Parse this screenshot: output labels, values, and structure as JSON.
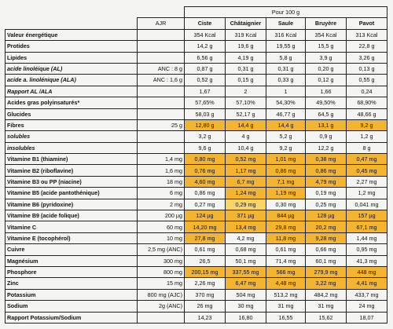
{
  "header": {
    "per_100g": "Pour 100 g",
    "ajr_label": "AJR",
    "columns": [
      "Ciste",
      "Châtaignier",
      "Saule",
      "Bruyère",
      "Pavot"
    ]
  },
  "colors": {
    "highlight": "#f3b431",
    "highlight_light": "#f7d46a",
    "background": "#f4f4f2"
  },
  "rows": [
    {
      "label": "Valeur énergétique",
      "italic": false,
      "ajr": "",
      "values": [
        "354 Kcal",
        "319 Kcal",
        "316 Kcal",
        "354 Kcal",
        "313 Kcal"
      ],
      "hl": [
        0,
        0,
        0,
        0,
        0
      ]
    },
    {
      "label": "Protides",
      "italic": false,
      "ajr": "",
      "values": [
        "14,2 g",
        "19,6 g",
        "19,55 g",
        "15,5 g",
        "22,8 g"
      ],
      "hl": [
        0,
        0,
        0,
        0,
        0
      ]
    },
    {
      "label": "Lipides",
      "italic": false,
      "ajr": "",
      "values": [
        "6,56 g",
        "4,19 g",
        "5,8 g",
        "3,9 g",
        "3,26 g"
      ],
      "hl": [
        0,
        0,
        0,
        0,
        0
      ]
    },
    {
      "label": "acide linoléique (AL)",
      "italic": true,
      "ajr": "ANC : 8 g",
      "values": [
        "0,87 g",
        "0,31 g",
        "0,31 g",
        "0,20 g",
        "0,13 g"
      ],
      "hl": [
        0,
        0,
        0,
        0,
        0
      ]
    },
    {
      "label": "acide a. linolénique (ALA)",
      "italic": true,
      "ajr": "ANC : 1,6 g",
      "values": [
        "0,52 g",
        "0,15 g",
        "0,33 g",
        "0,12 g",
        "0,55 g"
      ],
      "hl": [
        0,
        0,
        0,
        0,
        0
      ]
    },
    {
      "label": "Rapport AL /ALA",
      "italic": true,
      "ajr": "",
      "values": [
        "1,67",
        "2",
        "1",
        "1,66",
        "0,24"
      ],
      "hl": [
        0,
        0,
        0,
        0,
        0
      ]
    },
    {
      "label": "Acides gras polyinsaturés*",
      "italic": false,
      "ajr": "",
      "values": [
        "57,65%",
        "57,10%",
        "54,30%",
        "49,50%",
        "68,90%"
      ],
      "hl": [
        0,
        0,
        0,
        0,
        0
      ]
    },
    {
      "label": "Glucides",
      "italic": false,
      "ajr": "",
      "values": [
        "58,03 g",
        "52,17 g",
        "46,77 g",
        "64,5 g",
        "48,66 g"
      ],
      "hl": [
        0,
        0,
        0,
        0,
        0
      ]
    },
    {
      "label": "Fibres",
      "italic": false,
      "ajr": "25 g",
      "values": [
        "12,80 g",
        "14,4 g",
        "14,4 g",
        "13,1 g",
        "9,2 g"
      ],
      "hl": [
        1,
        1,
        1,
        1,
        1
      ]
    },
    {
      "label": "solubles",
      "italic": true,
      "ajr": "",
      "values": [
        "3,2 g",
        "4 g",
        "5,2 g",
        "0,9 g",
        "1,2 g"
      ],
      "hl": [
        0,
        0,
        0,
        0,
        0
      ]
    },
    {
      "label": "insolubles",
      "italic": true,
      "ajr": "",
      "values": [
        "9,6 g",
        "10,4 g",
        "9,2 g",
        "12,2 g",
        "8 g"
      ],
      "hl": [
        0,
        0,
        0,
        0,
        0
      ]
    },
    {
      "label": "Vitamine B1 (thiamine)",
      "italic": false,
      "ajr": "1,4 mg",
      "values": [
        "0,80 mg",
        "0,52 mg",
        "1,01 mg",
        "0,38 mg",
        "0,47 mg"
      ],
      "hl": [
        1,
        1,
        1,
        1,
        1
      ]
    },
    {
      "label": "Vitamine B2 (riboflavine)",
      "italic": false,
      "ajr": "1,6 mg",
      "values": [
        "0,76 mg",
        "1,17 mg",
        "0,86 mg",
        "0,86 mg",
        "0,45 mg"
      ],
      "hl": [
        1,
        1,
        1,
        1,
        1
      ]
    },
    {
      "label": "Vitamine B3 ou PP (niacine)",
      "italic": false,
      "ajr": "18 mg",
      "values": [
        "4,60 mg",
        "6,7 mg",
        "7,1 mg",
        "4,79 mg",
        "2,27 mg"
      ],
      "hl": [
        1,
        1,
        1,
        1,
        0
      ]
    },
    {
      "label": "Vitamine B5 (acide pantothénique)",
      "italic": false,
      "ajr": "6 mg",
      "values": [
        "0,86 mg",
        "1,24 mg",
        "1,19 mg",
        "0,19 mg",
        "1,2 mg"
      ],
      "hl": [
        0,
        1,
        1,
        0,
        0
      ]
    },
    {
      "label": "Vitamine B6 (pyridoxine)",
      "italic": false,
      "ajr": "2 mg",
      "values": [
        "0,27 mg",
        "0,29 mg",
        "0,30 mg",
        "0,25 mg",
        "0,041 mg"
      ],
      "hl": [
        0,
        2,
        0,
        0,
        0
      ]
    },
    {
      "label": "Vitamine B9 (acide folique)",
      "italic": false,
      "ajr": "200 µg",
      "values": [
        "124 µg",
        "371 µg",
        "844 µg",
        "128 µg",
        "157 µg"
      ],
      "hl": [
        1,
        1,
        1,
        1,
        1
      ]
    },
    {
      "label": "Vitamine C",
      "italic": false,
      "ajr": "60 mg",
      "values": [
        "14,20 mg",
        "13,4 mg",
        "29,8 mg",
        "20,2 mg",
        "67,1 mg"
      ],
      "hl": [
        1,
        1,
        1,
        1,
        1
      ]
    },
    {
      "label": "Vitamine E (tocophérol)",
      "italic": false,
      "ajr": "10 mg",
      "values": [
        "27,8 mg",
        "4,2 mg",
        "11,8 mg",
        "9,28 mg",
        "1,44 mg"
      ],
      "hl": [
        1,
        0,
        1,
        1,
        0
      ]
    },
    {
      "label": "Cuivre",
      "italic": false,
      "ajr": "2,5 mg (ANC)",
      "values": [
        "0,61 mg",
        "0,68 mg",
        "0,61 mg",
        "0,66 mg",
        "0,95 mg"
      ],
      "hl": [
        0,
        0,
        0,
        0,
        0
      ]
    },
    {
      "label": "Magnésium",
      "italic": false,
      "ajr": "300 mg",
      "values": [
        "26,5",
        "50,1 mg",
        "71,4 mg",
        "60,1 mg",
        "41,3 mg"
      ],
      "hl": [
        0,
        0,
        0,
        0,
        0
      ]
    },
    {
      "label": "Phosphore",
      "italic": false,
      "ajr": "800 mg",
      "values": [
        "200,15 mg",
        "337,55 mg",
        "566 mg",
        "279,9 mg",
        "448 mg"
      ],
      "hl": [
        1,
        1,
        1,
        1,
        1
      ]
    },
    {
      "label": "Zinc",
      "italic": false,
      "ajr": "15 mg",
      "values": [
        "2,26 mg",
        "6,47 mg",
        "4,48 mg",
        "3,22 mg",
        "4,41 mg"
      ],
      "hl": [
        0,
        1,
        1,
        1,
        1
      ]
    },
    {
      "label": "Potassium",
      "italic": false,
      "ajr": "800 mg (AJC)",
      "values": [
        "370 mg",
        "504 mg",
        "513,2 mg",
        "484,2 mg",
        "433,7 mg"
      ],
      "hl": [
        0,
        0,
        0,
        0,
        0
      ]
    },
    {
      "label": "Sodium",
      "italic": false,
      "ajr": "2g (ANC)",
      "values": [
        "26 mg",
        "30 mg",
        "31 mg",
        "31 mg",
        "24 mg"
      ],
      "hl": [
        0,
        0,
        0,
        0,
        0
      ]
    },
    {
      "label": "Rapport Potassium/Sodium",
      "italic": false,
      "ajr": "",
      "values": [
        "14,23",
        "16,80",
        "16,55",
        "15,62",
        "18,07"
      ],
      "hl": [
        0,
        0,
        0,
        0,
        0
      ]
    }
  ]
}
